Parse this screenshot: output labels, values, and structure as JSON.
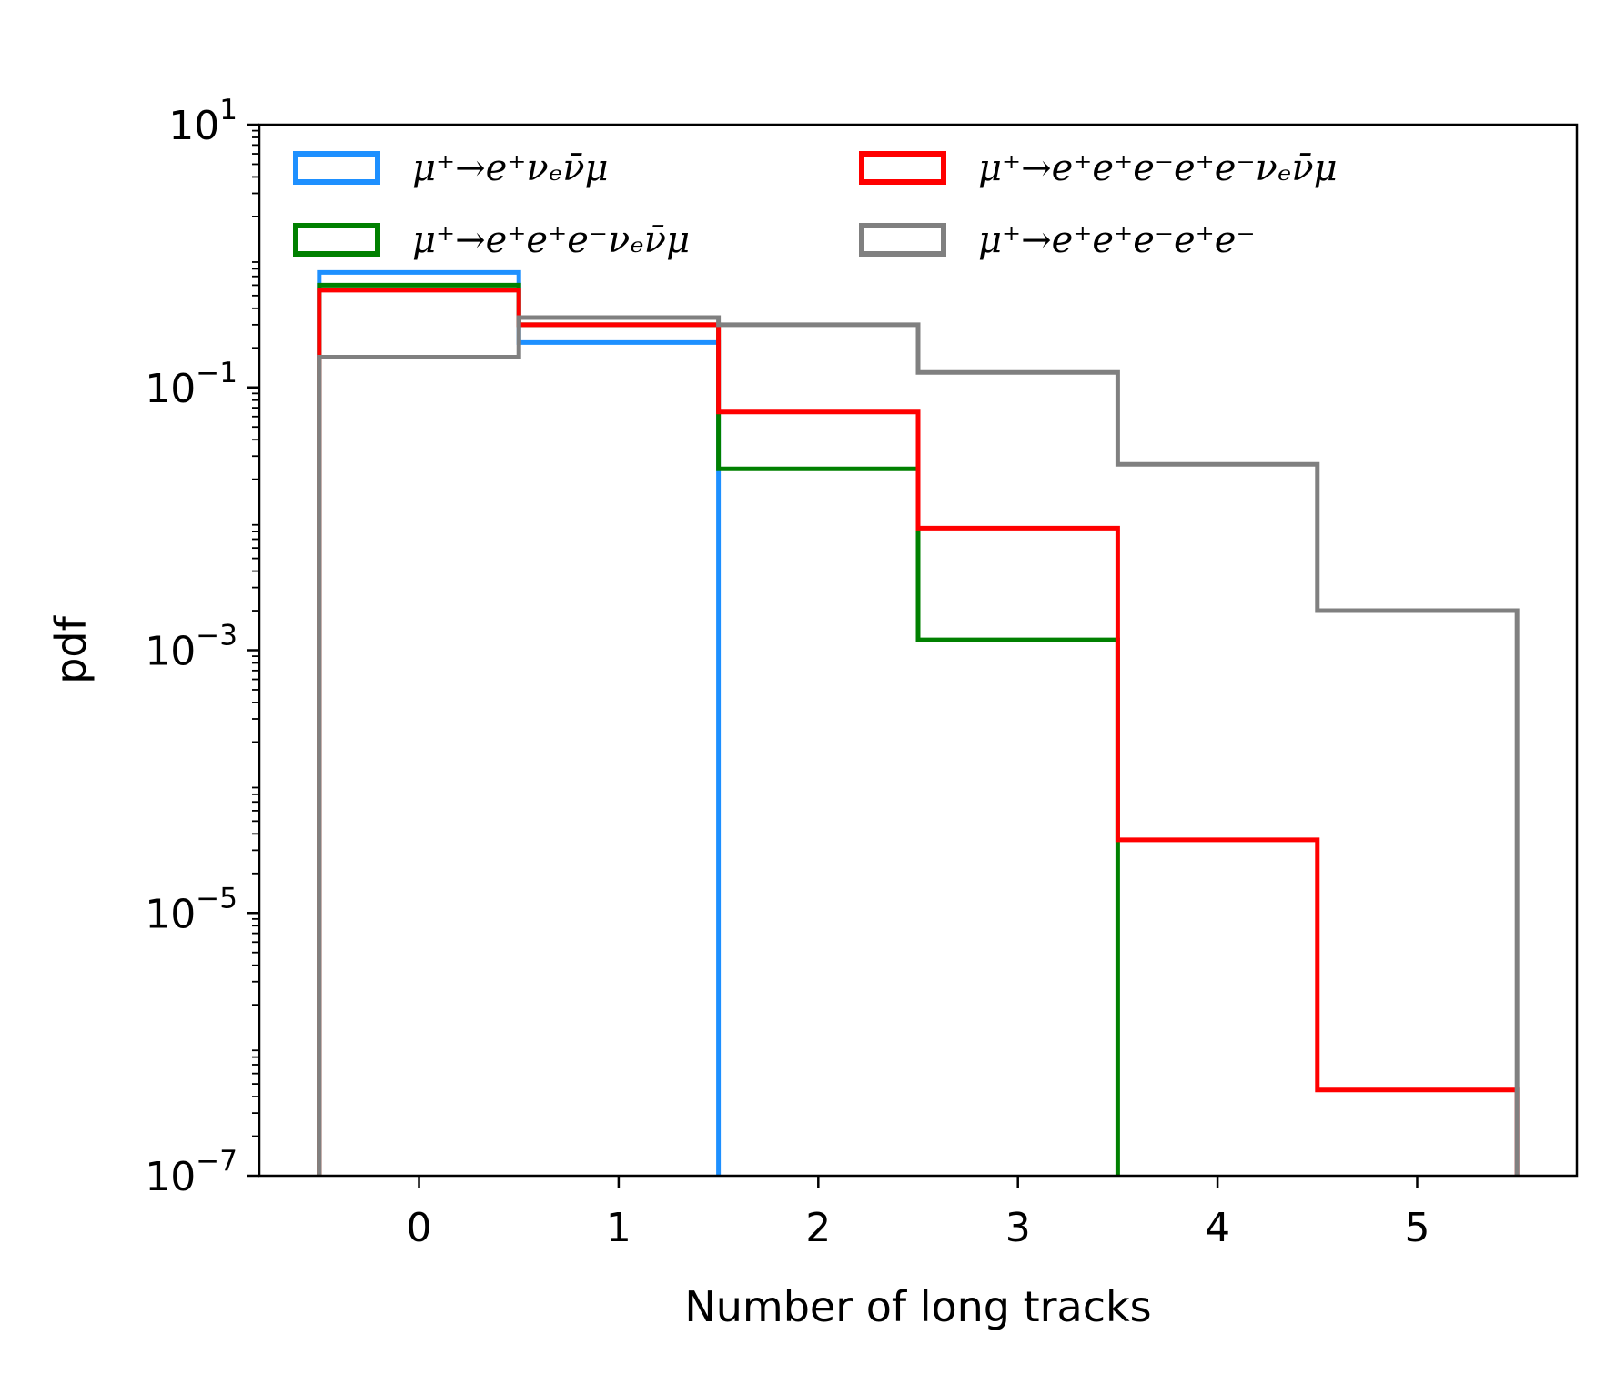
{
  "chart_data": {
    "type": "histogram-step",
    "xlabel": "Number of long tracks",
    "ylabel": "pdf",
    "xlim": [
      -0.8,
      5.8
    ],
    "ylim": [
      1e-07,
      10
    ],
    "yscale": "log",
    "xticks": [
      "0",
      "1",
      "2",
      "3",
      "4",
      "5"
    ],
    "yticks": [
      {
        "value": 10,
        "base": "10",
        "exp": "1"
      },
      {
        "value": 0.1,
        "base": "10",
        "exp": "−1"
      },
      {
        "value": 0.001,
        "base": "10",
        "exp": "−3"
      },
      {
        "value": 1e-05,
        "base": "10",
        "exp": "−5"
      },
      {
        "value": 1e-07,
        "base": "10",
        "exp": "−7"
      }
    ],
    "bin_edges": [
      -0.5,
      0.5,
      1.5,
      2.5,
      3.5,
      4.5,
      5.5
    ],
    "legend_position": "top, two columns",
    "series": [
      {
        "name": "μ⁺→e⁺νₑν̄μ",
        "color": "#1e90ff",
        "values": [
          0.75,
          0.22,
          null,
          null,
          null,
          null
        ]
      },
      {
        "name": "μ⁺→e⁺e⁺e⁻νₑν̄μ",
        "color": "#008000",
        "values": [
          0.6,
          0.3,
          0.024,
          0.0012,
          null,
          null
        ]
      },
      {
        "name": "μ⁺→e⁺e⁺e⁻e⁺e⁻νₑν̄μ",
        "color": "#ff0000",
        "values": [
          0.55,
          0.3,
          0.065,
          0.0085,
          3.6e-05,
          4.5e-07
        ]
      },
      {
        "name": "μ⁺→e⁺e⁺e⁻e⁺e⁻",
        "color": "#808080",
        "values": [
          0.17,
          0.34,
          0.3,
          0.13,
          0.026,
          0.002
        ]
      }
    ]
  }
}
